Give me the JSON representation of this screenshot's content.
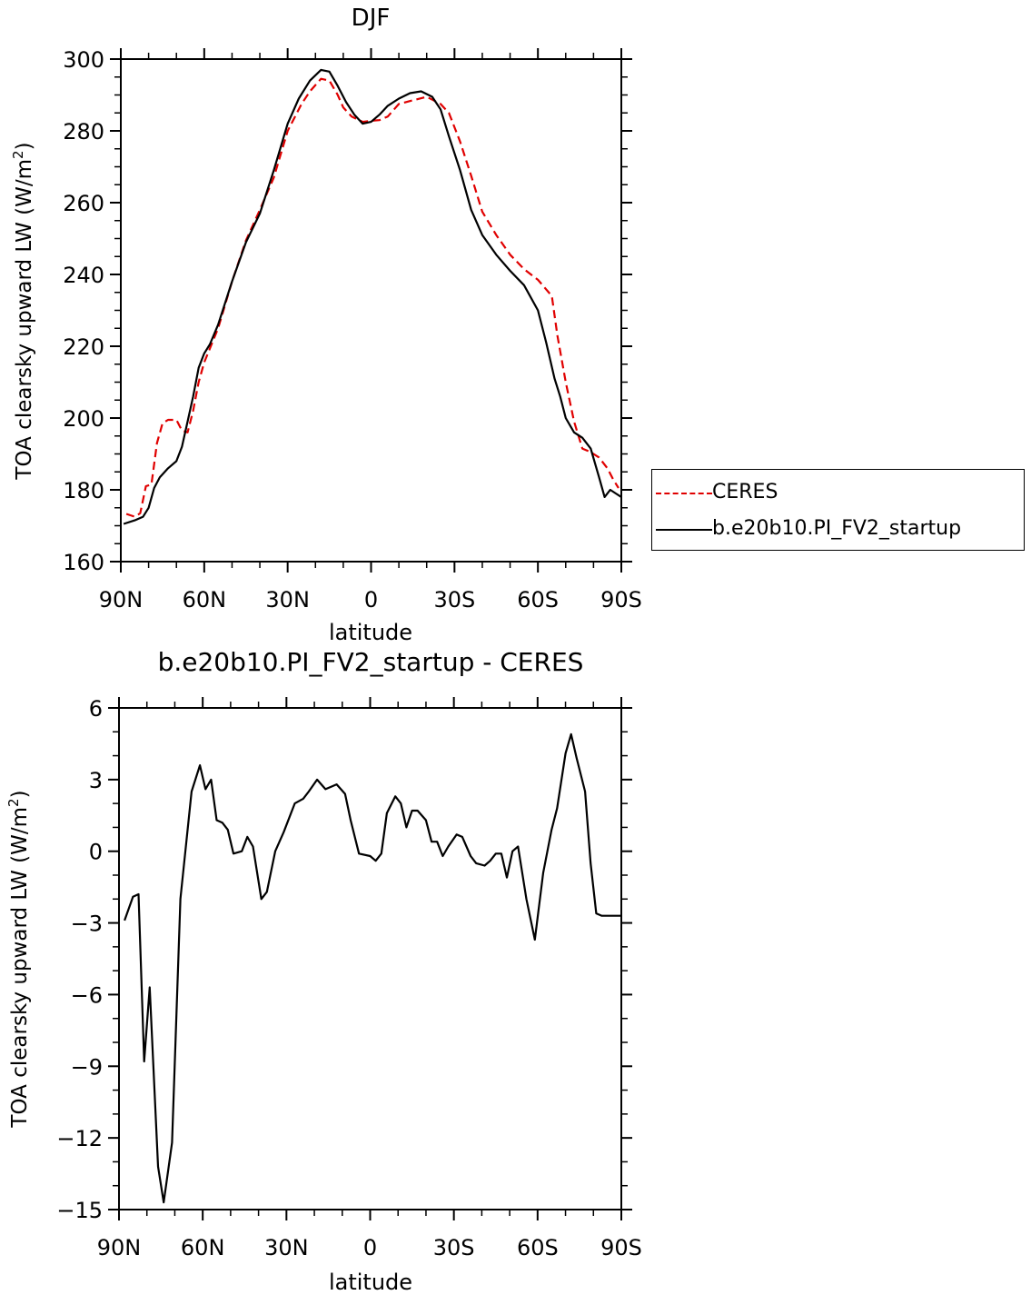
{
  "chart_data": [
    {
      "type": "line",
      "title": "DJF",
      "xlabel": "latitude",
      "ylabel": "TOA clearsky upward LW (W/m²)",
      "xlim": [
        90,
        -90
      ],
      "ylim": [
        160,
        300
      ],
      "yticks": [
        160,
        180,
        200,
        220,
        240,
        260,
        280,
        300
      ],
      "xticks": [
        90,
        60,
        30,
        0,
        -30,
        -60,
        -90
      ],
      "xtick_labels": [
        "90N",
        "60N",
        "30N",
        "0",
        "30S",
        "60S",
        "90S"
      ],
      "legend_position": "right",
      "series": [
        {
          "name": "CERES",
          "color": "#e00000",
          "style": "dashed",
          "x": [
            88,
            85,
            83,
            81,
            79,
            77,
            75,
            73,
            70,
            68,
            66,
            64,
            62,
            60,
            55,
            50,
            45,
            40,
            35,
            30,
            25,
            22,
            18,
            15,
            12,
            10,
            7,
            3,
            0,
            -3,
            -6,
            -10,
            -15,
            -20,
            -25,
            -28,
            -32,
            -36,
            -40,
            -45,
            -50,
            -55,
            -60,
            -65,
            -67,
            -70,
            -73,
            -76,
            -79,
            -82,
            -85,
            -87,
            -89
          ],
          "y": [
            173.3,
            172.5,
            173.5,
            181.0,
            181.5,
            193.0,
            198.5,
            199.5,
            199.5,
            196.5,
            196.0,
            202.0,
            210.0,
            215.5,
            225.0,
            238.0,
            249.5,
            258.0,
            267.0,
            280.0,
            287.5,
            291.0,
            294.5,
            294.0,
            290.0,
            286.5,
            284.0,
            282.5,
            282.8,
            283.0,
            284.0,
            287.5,
            288.5,
            289.5,
            287.5,
            285.0,
            277.0,
            267.5,
            257.5,
            251.0,
            245.5,
            241.5,
            238.5,
            234.0,
            223.0,
            210.0,
            199.0,
            191.5,
            190.5,
            189.0,
            186.0,
            183.0,
            180.5
          ]
        },
        {
          "name": "b.e20b10.PI_FV2_startup",
          "color": "#000000",
          "style": "solid",
          "x": [
            89,
            85,
            82,
            80,
            78,
            76,
            73,
            70,
            68,
            66,
            64,
            62,
            60,
            58,
            55,
            50,
            45,
            40,
            35,
            30,
            26,
            22,
            18,
            15,
            12,
            9,
            6,
            3,
            0,
            -3,
            -6,
            -10,
            -14,
            -18,
            -22,
            -25,
            -28,
            -32,
            -36,
            -40,
            -45,
            -50,
            -55,
            -60,
            -63,
            -66,
            -68,
            -70,
            -73,
            -76,
            -79,
            -82,
            -84,
            -86,
            -88,
            -90
          ],
          "y": [
            170.5,
            171.5,
            172.5,
            175.0,
            180.5,
            183.5,
            186.0,
            188.0,
            192.0,
            199.0,
            206.0,
            214.0,
            218.0,
            220.5,
            226.0,
            238.0,
            249.0,
            257.0,
            269.0,
            282.0,
            289.0,
            294.0,
            297.0,
            296.5,
            292.5,
            288.0,
            284.5,
            282.0,
            282.5,
            284.5,
            287.0,
            289.0,
            290.5,
            291.0,
            289.5,
            286.0,
            278.5,
            269.0,
            258.0,
            251.0,
            245.5,
            241.0,
            237.0,
            230.0,
            221.0,
            211.0,
            206.0,
            200.0,
            196.0,
            194.5,
            191.5,
            183.5,
            178.0,
            180.0,
            179.0,
            178.0
          ]
        }
      ]
    },
    {
      "type": "line",
      "title": "b.e20b10.PI_FV2_startup - CERES",
      "xlabel": "latitude",
      "ylabel": "TOA clearsky upward LW (W/m²)",
      "xlim": [
        90,
        -90
      ],
      "ylim": [
        -15,
        6
      ],
      "yticks": [
        -15,
        -12,
        -9,
        -6,
        -3,
        0,
        3,
        6
      ],
      "xticks": [
        90,
        60,
        30,
        0,
        -30,
        -60,
        -90
      ],
      "xtick_labels": [
        "90N",
        "60N",
        "30N",
        "0",
        "30S",
        "60S",
        "90S"
      ],
      "series": [
        {
          "color": "#000000",
          "style": "solid",
          "x": [
            88,
            85,
            83,
            81,
            79,
            76,
            74,
            71,
            68,
            64,
            61,
            59,
            57,
            55,
            53,
            51,
            49,
            46,
            44,
            42,
            39,
            37,
            34,
            31,
            27,
            24,
            22,
            19,
            16,
            14,
            12,
            9,
            7,
            4,
            0,
            -2,
            -4,
            -6,
            -9,
            -11,
            -13,
            -15,
            -17,
            -20,
            -22,
            -24,
            -26,
            -28,
            -31,
            -33,
            -36,
            -38,
            -41,
            -43,
            -45,
            -47,
            -49,
            -51,
            -53,
            -56,
            -59,
            -62,
            -65,
            -67,
            -70,
            -72,
            -74,
            -77,
            -79,
            -81,
            -83,
            -85,
            -87,
            -90
          ],
          "y": [
            -2.9,
            -1.9,
            -1.8,
            -8.8,
            -5.7,
            -13.2,
            -14.7,
            -12.2,
            -2.0,
            2.5,
            3.6,
            2.6,
            3.0,
            1.3,
            1.2,
            0.9,
            -0.1,
            0.0,
            0.6,
            0.2,
            -2.0,
            -1.7,
            0.0,
            0.8,
            2.0,
            2.2,
            2.5,
            3.0,
            2.6,
            2.7,
            2.8,
            2.4,
            1.3,
            -0.1,
            -0.2,
            -0.4,
            -0.1,
            1.6,
            2.3,
            2.0,
            1.0,
            1.7,
            1.7,
            1.3,
            0.4,
            0.4,
            -0.2,
            0.2,
            0.7,
            0.6,
            -0.2,
            -0.5,
            -0.6,
            -0.4,
            -0.1,
            -0.1,
            -1.1,
            0.0,
            0.2,
            -2.0,
            -3.7,
            -0.9,
            0.9,
            1.8,
            4.1,
            4.9,
            3.9,
            2.5,
            -0.5,
            -2.6,
            -2.7,
            -2.7,
            -2.7,
            -2.7
          ]
        }
      ]
    }
  ]
}
